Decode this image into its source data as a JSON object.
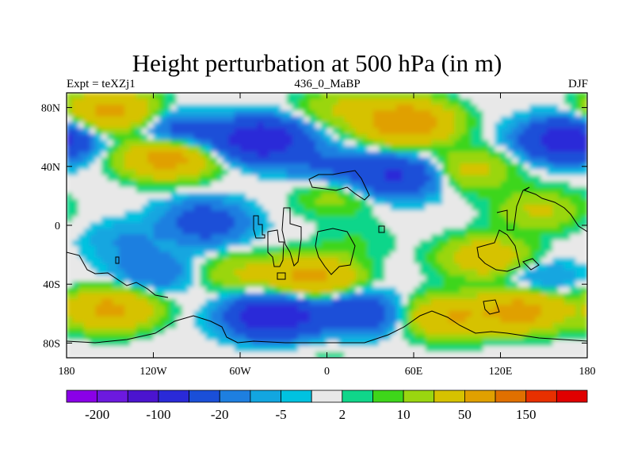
{
  "chart_data": {
    "type": "heatmap",
    "title": "Height perturbation at 500 hPa (in m)",
    "left_label": "Expt = teXZj1",
    "center_label": "436_0_MaBP",
    "right_label": "DJF",
    "x_range": [
      -180,
      180
    ],
    "y_range": [
      -90,
      90
    ],
    "x_ticks": [
      {
        "value": -180,
        "label": "180"
      },
      {
        "value": -120,
        "label": "120W"
      },
      {
        "value": -60,
        "label": "60W"
      },
      {
        "value": 0,
        "label": "0"
      },
      {
        "value": 60,
        "label": "60E"
      },
      {
        "value": 120,
        "label": "120E"
      },
      {
        "value": 180,
        "label": "180"
      }
    ],
    "y_ticks": [
      {
        "value": 80,
        "label": "80N"
      },
      {
        "value": 40,
        "label": "40N"
      },
      {
        "value": 0,
        "label": "0"
      },
      {
        "value": -40,
        "label": "40S"
      },
      {
        "value": -80,
        "label": "80S"
      }
    ],
    "contour_levels": [
      -200,
      -150,
      -100,
      -50,
      -20,
      -10,
      -5,
      -2,
      2,
      5,
      10,
      20,
      50,
      100,
      150,
      200
    ],
    "colorbar_colors": [
      "#8a00e8",
      "#6c19df",
      "#4b14cf",
      "#2a2ad8",
      "#1a4fd8",
      "#1e7fe0",
      "#12a6e0",
      "#00c2e0",
      "#e8e8e8",
      "#10d68a",
      "#3ed61a",
      "#9ad610",
      "#d6c200",
      "#e0a000",
      "#e07000",
      "#e83000",
      "#e00000"
    ],
    "colorbar_labels": [
      {
        "level_index": 0,
        "label": "-200"
      },
      {
        "level_index": 2,
        "label": "-100"
      },
      {
        "level_index": 4,
        "label": "-20"
      },
      {
        "level_index": 6,
        "label": "-5"
      },
      {
        "level_index": 8,
        "label": "2"
      },
      {
        "level_index": 10,
        "label": "10"
      },
      {
        "level_index": 12,
        "label": "50"
      },
      {
        "level_index": 14,
        "label": "150"
      }
    ],
    "anomaly_centers": [
      {
        "lon": -150,
        "lat": 78,
        "value": 60
      },
      {
        "lon": -102,
        "lat": 62,
        "value": -35
      },
      {
        "lon": -110,
        "lat": 46,
        "value": 70
      },
      {
        "lon": -45,
        "lat": 58,
        "value": -90
      },
      {
        "lon": 10,
        "lat": 80,
        "value": 20
      },
      {
        "lon": 55,
        "lat": 70,
        "value": 90
      },
      {
        "lon": 47,
        "lat": 33,
        "value": -55
      },
      {
        "lon": 0,
        "lat": 40,
        "value": -20
      },
      {
        "lon": 7,
        "lat": 20,
        "value": 15
      },
      {
        "lon": 100,
        "lat": 38,
        "value": 25
      },
      {
        "lon": 165,
        "lat": 58,
        "value": -80
      },
      {
        "lon": 145,
        "lat": 12,
        "value": 15
      },
      {
        "lon": 150,
        "lat": 8,
        "value": 8
      },
      {
        "lon": -85,
        "lat": 5,
        "value": -25
      },
      {
        "lon": -140,
        "lat": -10,
        "value": -10
      },
      {
        "lon": -120,
        "lat": -32,
        "value": -20
      },
      {
        "lon": 20,
        "lat": -10,
        "value": 5
      },
      {
        "lon": -60,
        "lat": -32,
        "value": 20
      },
      {
        "lon": -10,
        "lat": -35,
        "value": 60
      },
      {
        "lon": 110,
        "lat": -22,
        "value": 40
      },
      {
        "lon": 145,
        "lat": -37,
        "value": -15
      },
      {
        "lon": -150,
        "lat": -57,
        "value": 60
      },
      {
        "lon": -38,
        "lat": -62,
        "value": -90
      },
      {
        "lon": 20,
        "lat": -60,
        "value": -45
      },
      {
        "lon": 85,
        "lat": -62,
        "value": 50
      },
      {
        "lon": 135,
        "lat": -58,
        "value": 65
      },
      {
        "lon": 0,
        "lat": -85,
        "value": 3
      },
      {
        "lon": -80,
        "lat": -5,
        "value": -12
      }
    ]
  }
}
